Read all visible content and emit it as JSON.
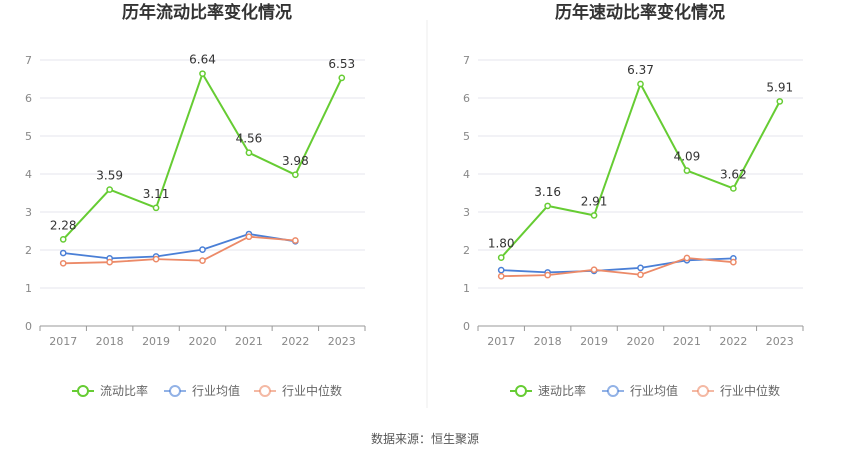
{
  "footer": {
    "source": "数据来源：恒生聚源"
  },
  "colors": {
    "main": "#66cc33",
    "avg": "#4a7fd6",
    "median": "#ec8a68",
    "grid": "#e6e6ee",
    "axis": "#999999"
  },
  "chart_data": [
    {
      "type": "line",
      "title": "历年流动比率变化情况",
      "categories": [
        "2017",
        "2018",
        "2019",
        "2020",
        "2021",
        "2022",
        "2023"
      ],
      "ylim": [
        0,
        7
      ],
      "yticks": [
        "0",
        "1",
        "2",
        "3",
        "4",
        "5",
        "6",
        "7"
      ],
      "grid": true,
      "legend_position": "bottom",
      "series": [
        {
          "name": "流动比率",
          "values": [
            2.28,
            3.59,
            3.11,
            6.64,
            4.56,
            3.98,
            6.53
          ],
          "labels": [
            "2.28",
            "3.59",
            "3.11",
            "6.64",
            "4.56",
            "3.98",
            "6.53"
          ]
        },
        {
          "name": "行业均值",
          "values": [
            1.92,
            1.78,
            1.83,
            2.01,
            2.42,
            2.23,
            null
          ]
        },
        {
          "name": "行业中位数",
          "values": [
            1.65,
            1.68,
            1.76,
            1.72,
            2.35,
            2.25,
            null
          ]
        }
      ]
    },
    {
      "type": "line",
      "title": "历年速动比率变化情况",
      "categories": [
        "2017",
        "2018",
        "2019",
        "2020",
        "2021",
        "2022",
        "2023"
      ],
      "ylim": [
        0,
        7
      ],
      "yticks": [
        "0",
        "1",
        "2",
        "3",
        "4",
        "5",
        "6",
        "7"
      ],
      "grid": true,
      "legend_position": "bottom",
      "series": [
        {
          "name": "速动比率",
          "values": [
            1.8,
            3.16,
            2.91,
            6.37,
            4.09,
            3.62,
            5.91
          ],
          "labels": [
            "1.80",
            "3.16",
            "2.91",
            "6.37",
            "4.09",
            "3.62",
            "5.91"
          ]
        },
        {
          "name": "行业均值",
          "values": [
            1.47,
            1.41,
            1.45,
            1.53,
            1.73,
            1.78,
            null
          ]
        },
        {
          "name": "行业中位数",
          "values": [
            1.31,
            1.34,
            1.48,
            1.35,
            1.79,
            1.68,
            null
          ]
        }
      ]
    }
  ]
}
